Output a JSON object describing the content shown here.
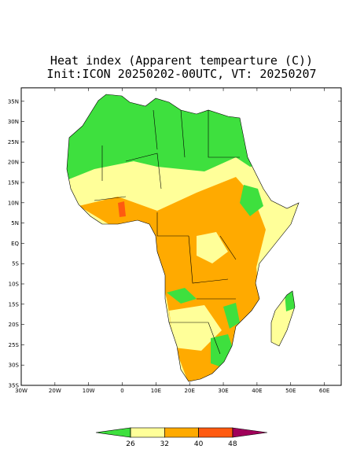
{
  "map": {
    "title": "Heat index (Apparent tempearture (C))",
    "subtitle": "Init:ICON 20250202-00UTC, VT: 20250207",
    "lonlim": [
      -30,
      65
    ],
    "latlim": [
      -35,
      38.3
    ],
    "lat_ticks": [
      {
        "value": 35,
        "label": "35N"
      },
      {
        "value": 30,
        "label": "30N"
      },
      {
        "value": 25,
        "label": "25N"
      },
      {
        "value": 20,
        "label": "20N"
      },
      {
        "value": 15,
        "label": "15N"
      },
      {
        "value": 10,
        "label": "10N"
      },
      {
        "value": 5,
        "label": "5N"
      },
      {
        "value": 0,
        "label": "EQ"
      },
      {
        "value": -5,
        "label": "5S"
      },
      {
        "value": -10,
        "label": "10S"
      },
      {
        "value": -15,
        "label": "15S"
      },
      {
        "value": -20,
        "label": "20S"
      },
      {
        "value": -25,
        "label": "25S"
      },
      {
        "value": -30,
        "label": "30S"
      },
      {
        "value": -35,
        "label": "35S"
      }
    ],
    "lon_ticks": [
      {
        "value": -30,
        "label": "30W"
      },
      {
        "value": -20,
        "label": "20W"
      },
      {
        "value": -10,
        "label": "10W"
      },
      0,
      {
        "value": 10,
        "label": "10E"
      },
      {
        "value": 20,
        "label": "20E"
      },
      {
        "value": 30,
        "label": "30E"
      },
      {
        "value": 40,
        "label": "40E"
      },
      {
        "value": 50,
        "label": "50E"
      },
      {
        "value": 60,
        "label": "60E"
      }
    ],
    "colorbar": {
      "levels": [
        26,
        32,
        40,
        48
      ],
      "colors": [
        "#3ee03e",
        "#ffff99",
        "#ffaa00",
        "#ff5a10",
        "#a0005a"
      ]
    }
  }
}
